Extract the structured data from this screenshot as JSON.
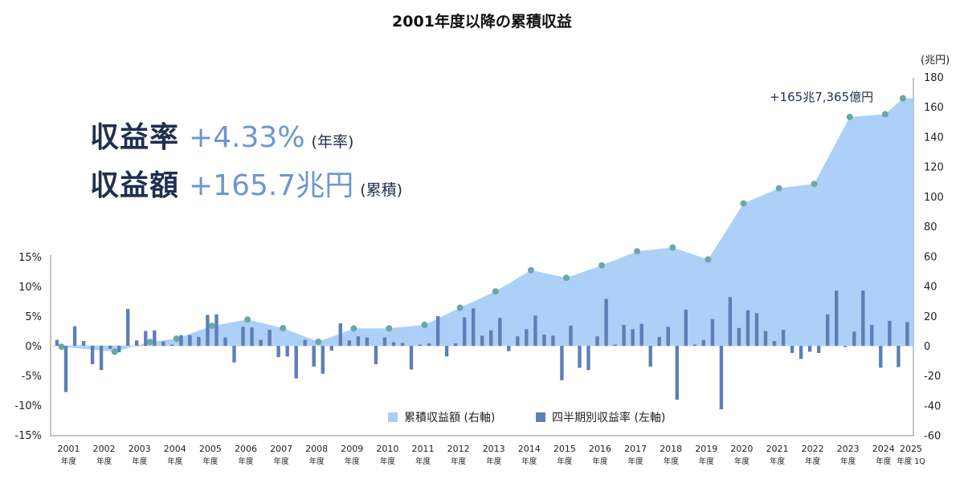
{
  "chart_data": {
    "type": "bar+area",
    "title": "2001年度以降の累積収益",
    "right_axis_unit": "(兆円)",
    "left_axis": {
      "ylim": [
        -15,
        15
      ],
      "ticks": [
        "15%",
        "10%",
        "5%",
        "0%",
        "-5%",
        "-10%",
        "-15%"
      ]
    },
    "right_axis": {
      "ylim": [
        -60,
        180
      ],
      "ticks": [
        "180",
        "160",
        "140",
        "120",
        "100",
        "80",
        "60",
        "40",
        "20",
        "0",
        "-20",
        "-40",
        "-60"
      ]
    },
    "x_labels": [
      {
        "year": "2001",
        "sub": "年度"
      },
      {
        "year": "2002",
        "sub": "年度"
      },
      {
        "year": "2003",
        "sub": "年度"
      },
      {
        "year": "2004",
        "sub": "年度"
      },
      {
        "year": "2005",
        "sub": "年度"
      },
      {
        "year": "2006",
        "sub": "年度"
      },
      {
        "year": "2007",
        "sub": "年度"
      },
      {
        "year": "2008",
        "sub": "年度"
      },
      {
        "year": "2009",
        "sub": "年度"
      },
      {
        "year": "2010",
        "sub": "年度"
      },
      {
        "year": "2011",
        "sub": "年度"
      },
      {
        "year": "2012",
        "sub": "年度"
      },
      {
        "year": "2013",
        "sub": "年度"
      },
      {
        "year": "2014",
        "sub": "年度"
      },
      {
        "year": "2015",
        "sub": "年度"
      },
      {
        "year": "2016",
        "sub": "年度"
      },
      {
        "year": "2017",
        "sub": "年度"
      },
      {
        "year": "2018",
        "sub": "年度"
      },
      {
        "year": "2019",
        "sub": "年度"
      },
      {
        "year": "2020",
        "sub": "年度"
      },
      {
        "year": "2021",
        "sub": "年度"
      },
      {
        "year": "2022",
        "sub": "年度"
      },
      {
        "year": "2023",
        "sub": "年度"
      },
      {
        "year": "2024",
        "sub": "年度"
      },
      {
        "year": "2025",
        "sub": "年度 1Q"
      }
    ],
    "series": [
      {
        "name": "四半期別収益率 (左軸)",
        "axis": "left",
        "color": "#5d7fb8",
        "values": [
          1.0,
          -7.8,
          3.3,
          0.8,
          -3.1,
          -4.1,
          -0.5,
          -1.1,
          6.2,
          0.9,
          2.5,
          2.6,
          0.7,
          0.2,
          1.8,
          1.8,
          1.5,
          5.2,
          5.3,
          1.4,
          -2.8,
          3.2,
          3.1,
          1.0,
          2.7,
          -1.9,
          -1.8,
          -5.5,
          1.0,
          -3.5,
          -4.7,
          -0.8,
          3.8,
          0.9,
          1.6,
          1.4,
          -3.1,
          1.4,
          0.6,
          0.5,
          -4.0,
          0.2,
          0.4,
          5.0,
          -1.8,
          0.4,
          4.8,
          6.3,
          1.7,
          2.6,
          4.7,
          -0.9,
          1.6,
          2.8,
          5.1,
          1.9,
          1.7,
          -5.8,
          3.4,
          -3.7,
          -4.1,
          1.6,
          7.9,
          0.2,
          3.5,
          2.8,
          3.7,
          -3.5,
          1.5,
          3.2,
          -9.1,
          6.1,
          0.2,
          1.0,
          4.5,
          -10.7,
          8.2,
          3.0,
          6.0,
          5.5,
          2.5,
          0.8,
          2.7,
          -1.2,
          -2.2,
          -1.0,
          -1.2,
          5.3,
          9.3,
          -0.2,
          2.4,
          9.3,
          3.5,
          -3.7,
          4.2,
          -3.6,
          4.0
        ]
      },
      {
        "name": "累積収益額 (右軸)",
        "axis": "right",
        "color": "#a8cdf7",
        "marker_color": "#6aa7a7",
        "points": [
          {
            "x": 2001.25,
            "y": -0.6
          },
          {
            "x": 2002.75,
            "y": -4.0
          },
          {
            "x": 2003.75,
            "y": 2.6
          },
          {
            "x": 2004.5,
            "y": 4.8
          },
          {
            "x": 2005.5,
            "y": 13.4
          },
          {
            "x": 2006.5,
            "y": 17.6
          },
          {
            "x": 2007.5,
            "y": 11.8
          },
          {
            "x": 2008.5,
            "y": 2.7
          },
          {
            "x": 2009.5,
            "y": 11.6
          },
          {
            "x": 2010.5,
            "y": 11.7
          },
          {
            "x": 2011.5,
            "y": 14.0
          },
          {
            "x": 2012.5,
            "y": 25.5
          },
          {
            "x": 2013.5,
            "y": 36.4
          },
          {
            "x": 2014.5,
            "y": 50.6
          },
          {
            "x": 2015.5,
            "y": 45.5
          },
          {
            "x": 2016.5,
            "y": 53.9
          },
          {
            "x": 2017.5,
            "y": 63.3
          },
          {
            "x": 2018.5,
            "y": 65.8
          },
          {
            "x": 2019.5,
            "y": 57.8
          },
          {
            "x": 2020.5,
            "y": 95.3
          },
          {
            "x": 2021.5,
            "y": 105.5
          },
          {
            "x": 2022.5,
            "y": 108.4
          },
          {
            "x": 2023.5,
            "y": 153.2
          },
          {
            "x": 2024.5,
            "y": 155.0
          },
          {
            "x": 2025.0,
            "y": 165.7
          }
        ]
      }
    ],
    "legend": {
      "placement": "bottom-center",
      "items": [
        {
          "label": "累積収益額 (右軸)",
          "color": "#a8cdf7"
        },
        {
          "label": "四半期別収益率 (左軸)",
          "color": "#5d7fb8"
        }
      ]
    },
    "annotation": "+165兆7,365億円"
  },
  "stats": {
    "rate_label": "収益率",
    "rate_value": "+4.33%",
    "rate_note": "(年率)",
    "amount_label": "収益額",
    "amount_value": "+165.7兆円",
    "amount_note": "(累積)"
  }
}
